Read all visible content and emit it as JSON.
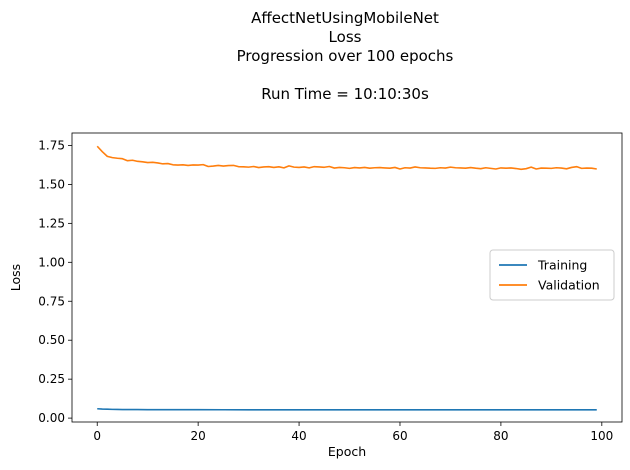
{
  "chart_data": {
    "type": "line",
    "title_lines": [
      "AffectNetUsingMobileNet",
      "Loss",
      "Progression over 100 epochs",
      "",
      "Run Time = 10:10:30s"
    ],
    "xlabel": "Epoch",
    "ylabel": "Loss",
    "xlim": [
      -5,
      104
    ],
    "ylim": [
      -0.025,
      1.83
    ],
    "xticks": [
      0,
      20,
      40,
      60,
      80,
      100
    ],
    "xtick_labels": [
      "0",
      "20",
      "40",
      "60",
      "80",
      "100"
    ],
    "yticks": [
      0.0,
      0.25,
      0.5,
      0.75,
      1.0,
      1.25,
      1.5,
      1.75
    ],
    "ytick_labels": [
      "0.00",
      "0.25",
      "0.50",
      "0.75",
      "1.00",
      "1.25",
      "1.50",
      "1.75"
    ],
    "grid": false,
    "legend_position": "center-right",
    "series": [
      {
        "name": "Training",
        "color": "#1f77b4",
        "x": [
          0,
          1,
          2,
          3,
          4,
          5,
          6,
          8,
          10,
          12,
          15,
          20,
          25,
          30,
          40,
          50,
          60,
          70,
          80,
          90,
          99
        ],
        "values": [
          0.06,
          0.058,
          0.057,
          0.056,
          0.0555,
          0.055,
          0.0548,
          0.0545,
          0.0543,
          0.0541,
          0.054,
          0.0538,
          0.0536,
          0.0535,
          0.0534,
          0.0533,
          0.0532,
          0.0531,
          0.053,
          0.053,
          0.0529
        ]
      },
      {
        "name": "Validation",
        "color": "#ff7f0e",
        "x": [
          0,
          1,
          2,
          3,
          4,
          5,
          6,
          7,
          8,
          9,
          10,
          11,
          12,
          13,
          14,
          15,
          16,
          17,
          18,
          19,
          20,
          21,
          22,
          23,
          24,
          25,
          26,
          27,
          28,
          29,
          30,
          31,
          32,
          33,
          34,
          35,
          36,
          37,
          38,
          39,
          40,
          41,
          42,
          43,
          44,
          45,
          46,
          47,
          48,
          49,
          50,
          51,
          52,
          53,
          54,
          55,
          56,
          57,
          58,
          59,
          60,
          61,
          62,
          63,
          64,
          65,
          66,
          67,
          68,
          69,
          70,
          71,
          72,
          73,
          74,
          75,
          76,
          77,
          78,
          79,
          80,
          81,
          82,
          83,
          84,
          85,
          86,
          87,
          88,
          89,
          90,
          91,
          92,
          93,
          94,
          95,
          96,
          97,
          98,
          99
        ],
        "values": [
          1.745,
          1.71,
          1.68,
          1.672,
          1.668,
          1.665,
          1.652,
          1.655,
          1.648,
          1.645,
          1.64,
          1.642,
          1.638,
          1.632,
          1.634,
          1.626,
          1.624,
          1.626,
          1.622,
          1.625,
          1.624,
          1.627,
          1.615,
          1.618,
          1.622,
          1.618,
          1.621,
          1.622,
          1.614,
          1.613,
          1.611,
          1.615,
          1.608,
          1.612,
          1.614,
          1.609,
          1.613,
          1.606,
          1.619,
          1.611,
          1.609,
          1.612,
          1.606,
          1.614,
          1.612,
          1.61,
          1.615,
          1.605,
          1.609,
          1.607,
          1.603,
          1.608,
          1.606,
          1.609,
          1.604,
          1.607,
          1.608,
          1.606,
          1.604,
          1.609,
          1.599,
          1.607,
          1.605,
          1.612,
          1.607,
          1.606,
          1.604,
          1.603,
          1.607,
          1.605,
          1.611,
          1.607,
          1.606,
          1.604,
          1.608,
          1.604,
          1.601,
          1.607,
          1.603,
          1.599,
          1.606,
          1.604,
          1.606,
          1.602,
          1.597,
          1.601,
          1.611,
          1.599,
          1.605,
          1.604,
          1.603,
          1.607,
          1.605,
          1.6,
          1.609,
          1.614,
          1.603,
          1.605,
          1.604,
          1.599
        ]
      }
    ]
  }
}
